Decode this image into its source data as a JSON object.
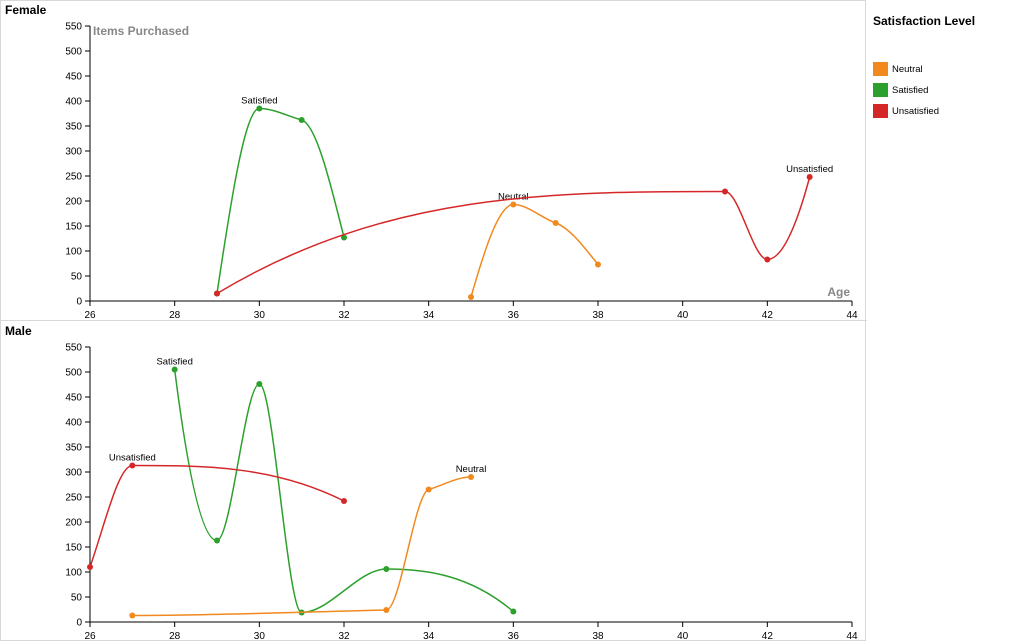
{
  "chart_data": {
    "type": "line",
    "legend": {
      "title": "Satisfaction Level",
      "placement": "right",
      "entries": [
        {
          "name": "Neutral",
          "color": "#f2891f"
        },
        {
          "name": "Satisfied",
          "color": "#2ca02c"
        },
        {
          "name": "Unsatisfied",
          "color": "#d62728"
        }
      ]
    },
    "panels": [
      {
        "title": "Female",
        "xlabel": "Age",
        "ylabel": "Items Purchased",
        "xlim": [
          26,
          44
        ],
        "ylim": [
          0,
          550
        ],
        "xticks": [
          26,
          28,
          30,
          32,
          34,
          36,
          38,
          40,
          42,
          44
        ],
        "yticks": [
          0,
          50,
          100,
          150,
          200,
          250,
          300,
          350,
          400,
          450,
          500,
          550
        ],
        "series": [
          {
            "name": "Satisfied",
            "label": "Satisfied",
            "color": "#2ca02c",
            "x": [
              29,
              30,
              31,
              32
            ],
            "y": [
              15,
              385,
              362,
              127
            ]
          },
          {
            "name": "Neutral",
            "label": "Neutral",
            "color": "#f2891f",
            "x": [
              35,
              36,
              37,
              38
            ],
            "y": [
              8,
              193,
              156,
              73
            ]
          },
          {
            "name": "Unsatisfied",
            "label": "Unsatisfied",
            "color": "#d62728",
            "x": [
              29,
              41,
              42,
              43
            ],
            "y": [
              15,
              219,
              83,
              248
            ]
          }
        ]
      },
      {
        "title": "Male",
        "xlabel": "",
        "ylabel": "",
        "xlim": [
          26,
          44
        ],
        "ylim": [
          0,
          550
        ],
        "xticks": [
          26,
          28,
          30,
          32,
          34,
          36,
          38,
          40,
          42,
          44
        ],
        "yticks": [
          0,
          50,
          100,
          150,
          200,
          250,
          300,
          350,
          400,
          450,
          500,
          550
        ],
        "series": [
          {
            "name": "Satisfied",
            "label": "Satisfied",
            "color": "#2ca02c",
            "x": [
              28,
              29,
              30,
              31,
              33,
              36
            ],
            "y": [
              505,
              163,
              476,
              19,
              106,
              21
            ]
          },
          {
            "name": "Neutral",
            "label": "Neutral",
            "color": "#f2891f",
            "x": [
              27,
              33,
              34,
              35
            ],
            "y": [
              13,
              24,
              265,
              290
            ]
          },
          {
            "name": "Unsatisfied",
            "label": "Unsatisfied",
            "color": "#d62728",
            "x": [
              26,
              27,
              32
            ],
            "y": [
              110,
              313,
              242
            ]
          }
        ]
      }
    ]
  }
}
